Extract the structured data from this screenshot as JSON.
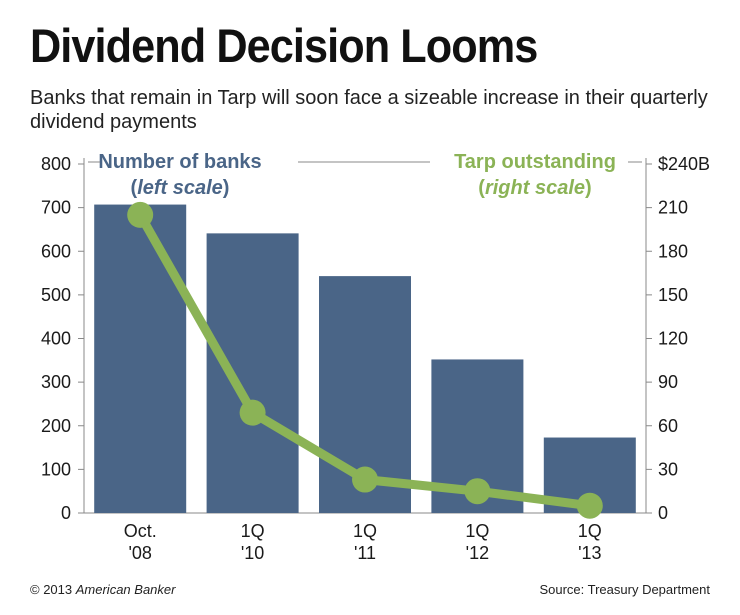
{
  "title": "Dividend Decision Looms",
  "subtitle": "Banks that remain in Tarp will soon face a sizeable increase in their quarterly dividend payments",
  "footer": {
    "copyright_prefix": "© 2013",
    "copyright_source": "American Banker",
    "source": "Source: Treasury Department"
  },
  "colors": {
    "bar": "#4a6587",
    "line": "#8bb356",
    "axis": "#888888"
  },
  "chart_data": {
    "type": "bar+line",
    "title": "Dividend Decision Looms",
    "categories": [
      [
        "Oct.",
        "'08"
      ],
      [
        "1Q",
        "'10"
      ],
      [
        "1Q",
        "'11"
      ],
      [
        "1Q",
        "'12"
      ],
      [
        "1Q",
        "'13"
      ]
    ],
    "series": [
      {
        "name": "Number of banks",
        "scale_note": "left scale",
        "type": "bar",
        "axis": "left",
        "values": [
          707,
          641,
          543,
          352,
          173
        ]
      },
      {
        "name": "Tarp outstanding",
        "scale_note": "right scale",
        "type": "line",
        "axis": "right",
        "values": [
          205,
          69,
          23,
          15,
          5
        ]
      }
    ],
    "left_axis": {
      "ylim": [
        0,
        800
      ],
      "ticks": [
        "0",
        "100",
        "200",
        "300",
        "400",
        "500",
        "600",
        "700",
        "800"
      ]
    },
    "right_axis": {
      "ylim": [
        0,
        240
      ],
      "ticks": [
        "0",
        "30",
        "60",
        "90",
        "120",
        "150",
        "180",
        "210",
        "$240B"
      ]
    },
    "legend_placement": "top"
  }
}
